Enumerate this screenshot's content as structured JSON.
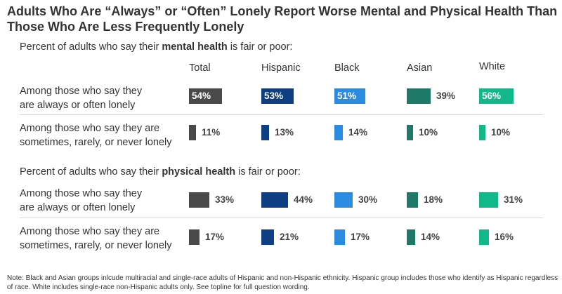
{
  "title": "Adults Who Are “Always” or “Often” Lonely Report Worse Mental and Physical Health Than Those Who Are Less Frequently Lonely",
  "colors": {
    "Total": "#4a4a4a",
    "Hispanic": "#0d3f82",
    "Black": "#2b8be0",
    "Asian": "#1e7a66",
    "White": "#13b88a"
  },
  "chart_data": {
    "type": "bar",
    "groups": [
      "Total",
      "Hispanic",
      "Black",
      "Asian",
      "White"
    ],
    "sections": [
      {
        "subtitle_pre": "Percent of adults who say their ",
        "subtitle_bold": "mental health",
        "subtitle_post": " is fair or poor:",
        "rows": [
          {
            "label_line1": "Among those who say they",
            "label_line2": "are always or often lonely",
            "values": [
              54,
              53,
              51,
              39,
              56
            ],
            "labels": [
              "54%",
              "53%",
              "51%",
              "39%",
              "56%"
            ]
          },
          {
            "label_line1": "Among those who say they are",
            "label_line2": "sometimes, rarely, or never lonely",
            "values": [
              11,
              13,
              14,
              10,
              10
            ],
            "labels": [
              "11%",
              "13%",
              "14%",
              "10%",
              "10%"
            ]
          }
        ]
      },
      {
        "subtitle_pre": "Percent of adults who say their ",
        "subtitle_bold": "physical health",
        "subtitle_post": " is fair or poor:",
        "rows": [
          {
            "label_line1": "Among those who say they",
            "label_line2": "are always or often lonely",
            "values": [
              33,
              44,
              30,
              18,
              31
            ],
            "labels": [
              "33%",
              "44%",
              "30%",
              "18%",
              "31%"
            ]
          },
          {
            "label_line1": "Among those who say they are",
            "label_line2": "sometimes, rarely, or never lonely",
            "values": [
              17,
              21,
              17,
              14,
              16
            ],
            "labels": [
              "17%",
              "21%",
              "17%",
              "14%",
              "16%"
            ]
          }
        ]
      }
    ]
  },
  "note": "Note: Black and Asian groups inlcude multiracial and single-race adults of Hispanic and non-Hispanic ethnicity. Hispanic group includes those who identify as Hispanic regardless of race. White includes single-race non-Hispanic adults only. See topline for full question wording."
}
